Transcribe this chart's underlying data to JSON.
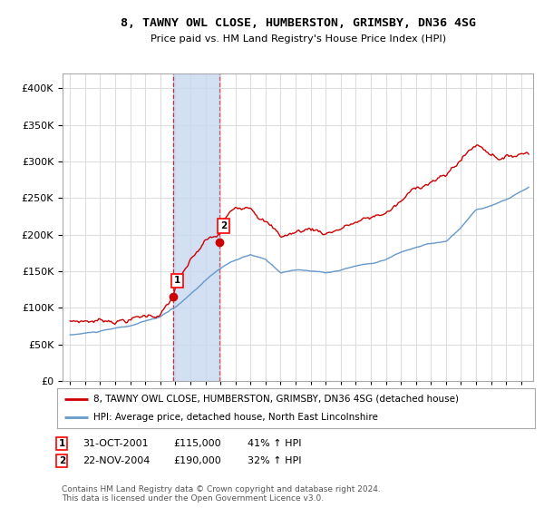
{
  "title": "8, TAWNY OWL CLOSE, HUMBERSTON, GRIMSBY, DN36 4SG",
  "subtitle": "Price paid vs. HM Land Registry's House Price Index (HPI)",
  "ylim": [
    0,
    420000
  ],
  "yticks": [
    0,
    50000,
    100000,
    150000,
    200000,
    250000,
    300000,
    350000,
    400000
  ],
  "sale1_year": 2001.833,
  "sale1_price": 115000,
  "sale2_year": 2004.917,
  "sale2_price": 190000,
  "legend_line1": "8, TAWNY OWL CLOSE, HUMBERSTON, GRIMSBY, DN36 4SG (detached house)",
  "legend_line2": "HPI: Average price, detached house, North East Lincolnshire",
  "footer": "Contains HM Land Registry data © Crown copyright and database right 2024.\nThis data is licensed under the Open Government Licence v3.0.",
  "line_red_color": "#cc0000",
  "line_blue_color": "#6699cc",
  "shade_color": "#c8d8f0",
  "grid_color": "#dddddd",
  "bg_color": "#ffffff"
}
